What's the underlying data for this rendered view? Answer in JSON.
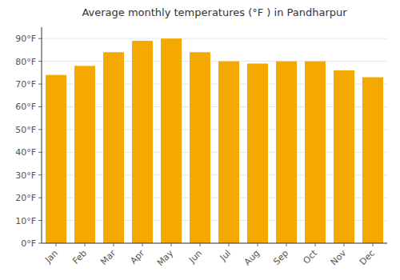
{
  "chart_data": {
    "type": "bar",
    "title": "Average monthly temperatures (°F ) in Pandharpur",
    "categories": [
      "Jan",
      "Feb",
      "Mar",
      "Apr",
      "May",
      "Jun",
      "Jul",
      "Aug",
      "Sep",
      "Oct",
      "Nov",
      "Dec"
    ],
    "values": [
      74,
      78,
      84,
      89,
      90,
      84,
      80,
      79,
      80,
      80,
      76,
      73
    ],
    "color": "#F5A800",
    "ylim": [
      0,
      95
    ],
    "yticks": [
      {
        "value": 0,
        "label": "0°F"
      },
      {
        "value": 10,
        "label": "10°F"
      },
      {
        "value": 20,
        "label": "20°F"
      },
      {
        "value": 30,
        "label": "30°F"
      },
      {
        "value": 40,
        "label": "40°F"
      },
      {
        "value": 50,
        "label": "50°F"
      },
      {
        "value": 60,
        "label": "60°F"
      },
      {
        "value": 70,
        "label": "70°F"
      },
      {
        "value": 80,
        "label": "80°F"
      },
      {
        "value": 90,
        "label": "90°F"
      }
    ],
    "grid": true
  }
}
